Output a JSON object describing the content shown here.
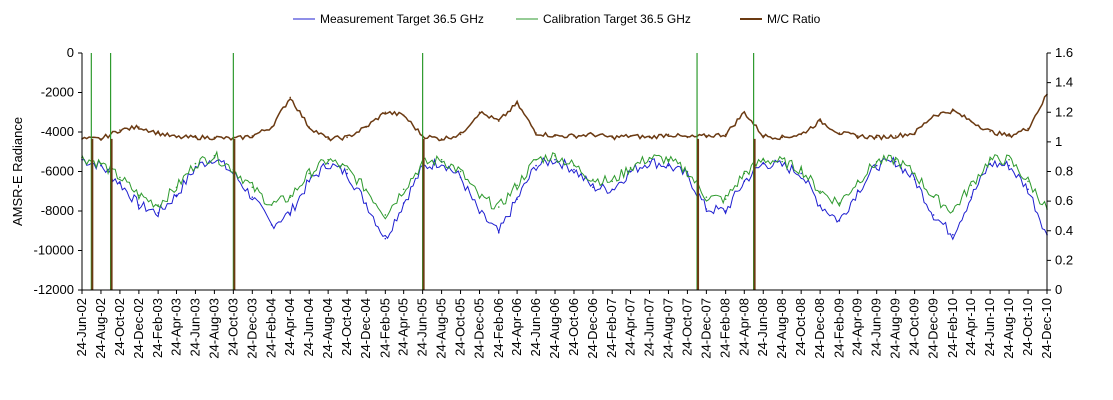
{
  "chart_data": {
    "type": "line",
    "ylabel": "AMSR-E Radiance",
    "y_left_range": [
      -12000,
      0
    ],
    "y_left_ticks": [
      "0",
      "-2000",
      "-4000",
      "-6000",
      "-8000",
      "-10000",
      "-12000"
    ],
    "y_right_range": [
      0,
      1.6
    ],
    "y_right_ticks": [
      "1.6",
      "1.4",
      "1.2",
      "1",
      "0.8",
      "0.6",
      "0.4",
      "0.2",
      "0"
    ],
    "x_tick_labels": [
      "24-Jun-02",
      "24-Aug-02",
      "24-Oct-02",
      "24-Dec-02",
      "24-Feb-03",
      "24-Apr-03",
      "24-Jun-03",
      "24-Aug-03",
      "24-Oct-03",
      "24-Dec-03",
      "24-Feb-04",
      "24-Apr-04",
      "24-Jun-04",
      "24-Aug-04",
      "24-Oct-04",
      "24-Dec-04",
      "24-Feb-05",
      "24-Apr-05",
      "24-Jun-05",
      "24-Aug-05",
      "24-Oct-05",
      "24-Dec-05",
      "24-Feb-06",
      "24-Apr-06",
      "24-Jun-06",
      "24-Aug-06",
      "24-Oct-06",
      "24-Dec-06",
      "24-Feb-07",
      "24-Apr-07",
      "24-Jun-07",
      "24-Aug-07",
      "24-Oct-07",
      "24-Dec-07",
      "24-Feb-08",
      "24-Apr-08",
      "24-Jun-08",
      "24-Aug-08",
      "24-Oct-08",
      "24-Dec-08",
      "24-Feb-09",
      "24-Apr-09",
      "24-Jun-09",
      "24-Aug-09",
      "24-Oct-09",
      "24-Dec-09",
      "24-Feb-10",
      "24-Apr-10",
      "24-Jun-10",
      "24-Aug-10",
      "24-Oct-10",
      "24-Dec-10"
    ],
    "grid": false,
    "legend_position": "top",
    "series": [
      {
        "name": "Measurement Target 36.5 GHz",
        "axis": "left",
        "color": "#1f1fd0",
        "x": [
          "24-Jun-02",
          "24-Aug-02",
          "24-Oct-02",
          "24-Dec-02",
          "24-Feb-03",
          "24-Apr-03",
          "24-Jun-03",
          "24-Aug-03",
          "24-Oct-03",
          "24-Dec-03",
          "24-Feb-04",
          "24-Apr-04",
          "24-Jun-04",
          "24-Aug-04",
          "24-Oct-04",
          "24-Dec-04",
          "24-Feb-05",
          "24-Apr-05",
          "24-Jun-05",
          "24-Aug-05",
          "24-Oct-05",
          "24-Dec-05",
          "24-Feb-06",
          "24-Apr-06",
          "24-Jun-06",
          "24-Aug-06",
          "24-Oct-06",
          "24-Dec-06",
          "24-Feb-07",
          "24-Apr-07",
          "24-Jun-07",
          "24-Aug-07",
          "24-Oct-07",
          "24-Dec-07",
          "24-Feb-08",
          "24-Apr-08",
          "24-Jun-08",
          "24-Aug-08",
          "24-Oct-08",
          "24-Dec-08",
          "24-Feb-09",
          "24-Apr-09",
          "24-Jun-09",
          "24-Aug-09",
          "24-Oct-09",
          "24-Dec-09",
          "24-Feb-10",
          "24-Apr-10",
          "24-Jun-10",
          "24-Aug-10",
          "24-Oct-10",
          "24-Dec-10"
        ],
        "values": [
          -5400,
          -5700,
          -6600,
          -7700,
          -8100,
          -7200,
          -5800,
          -5300,
          -6100,
          -7300,
          -8700,
          -8100,
          -6500,
          -5600,
          -6100,
          -7600,
          -9400,
          -7600,
          -5800,
          -5500,
          -6300,
          -8100,
          -9100,
          -7400,
          -5700,
          -5400,
          -5900,
          -6800,
          -6900,
          -6000,
          -5500,
          -5700,
          -6200,
          -7900,
          -8000,
          -6500,
          -5600,
          -5700,
          -6100,
          -7700,
          -8500,
          -7000,
          -5700,
          -5500,
          -6400,
          -8200,
          -9200,
          -7300,
          -5600,
          -5700,
          -6900,
          -9200
        ]
      },
      {
        "name": "Calibration Target 36.5 GHz",
        "axis": "left",
        "color": "#2e9a2e",
        "x": [
          "24-Jun-02",
          "24-Aug-02",
          "24-Oct-02",
          "24-Dec-02",
          "24-Feb-03",
          "24-Apr-03",
          "24-Jun-03",
          "24-Aug-03",
          "24-Oct-03",
          "24-Dec-03",
          "24-Feb-04",
          "24-Apr-04",
          "24-Jun-04",
          "24-Aug-04",
          "24-Oct-04",
          "24-Dec-04",
          "24-Feb-05",
          "24-Apr-05",
          "24-Jun-05",
          "24-Aug-05",
          "24-Oct-05",
          "24-Dec-05",
          "24-Feb-06",
          "24-Apr-06",
          "24-Jun-06",
          "24-Aug-06",
          "24-Oct-06",
          "24-Dec-06",
          "24-Feb-07",
          "24-Apr-07",
          "24-Jun-07",
          "24-Aug-07",
          "24-Oct-07",
          "24-Dec-07",
          "24-Feb-08",
          "24-Apr-08",
          "24-Jun-08",
          "24-Aug-08",
          "24-Oct-08",
          "24-Dec-08",
          "24-Feb-09",
          "24-Apr-09",
          "24-Jun-09",
          "24-Aug-09",
          "24-Oct-09",
          "24-Dec-09",
          "24-Feb-10",
          "24-Apr-10",
          "24-Jun-10",
          "24-Aug-10",
          "24-Oct-10",
          "24-Dec-10"
        ],
        "values": [
          -5300,
          -5600,
          -6300,
          -7200,
          -7700,
          -6800,
          -5600,
          -5200,
          -5900,
          -6800,
          -7700,
          -7300,
          -6100,
          -5400,
          -5900,
          -6900,
          -8200,
          -6900,
          -5600,
          -5400,
          -6000,
          -7300,
          -7800,
          -6700,
          -5400,
          -5200,
          -5700,
          -6400,
          -6500,
          -5800,
          -5300,
          -5400,
          -6000,
          -7300,
          -7400,
          -6100,
          -5400,
          -5500,
          -5900,
          -7000,
          -7600,
          -6500,
          -5500,
          -5400,
          -6100,
          -7300,
          -8000,
          -6700,
          -5400,
          -5400,
          -6500,
          -7900
        ]
      },
      {
        "name": "M/C Ratio",
        "axis": "right",
        "color": "#6b3a12",
        "x": [
          "24-Jun-02",
          "24-Aug-02",
          "24-Oct-02",
          "24-Dec-02",
          "24-Feb-03",
          "24-Apr-03",
          "24-Jun-03",
          "24-Aug-03",
          "24-Oct-03",
          "24-Dec-03",
          "24-Feb-04",
          "24-Apr-04",
          "24-Jun-04",
          "24-Aug-04",
          "24-Oct-04",
          "24-Dec-04",
          "24-Feb-05",
          "24-Apr-05",
          "24-Jun-05",
          "24-Aug-05",
          "24-Oct-05",
          "24-Dec-05",
          "24-Feb-06",
          "24-Apr-06",
          "24-Jun-06",
          "24-Aug-06",
          "24-Oct-06",
          "24-Dec-06",
          "24-Feb-07",
          "24-Apr-07",
          "24-Jun-07",
          "24-Aug-07",
          "24-Oct-07",
          "24-Dec-07",
          "24-Feb-08",
          "24-Apr-08",
          "24-Jun-08",
          "24-Aug-08",
          "24-Oct-08",
          "24-Dec-08",
          "24-Feb-09",
          "24-Apr-09",
          "24-Jun-09",
          "24-Aug-09",
          "24-Oct-09",
          "24-Dec-09",
          "24-Feb-10",
          "24-Apr-10",
          "24-Jun-10",
          "24-Aug-10",
          "24-Oct-10",
          "24-Dec-10"
        ],
        "values": [
          1.02,
          1.02,
          1.08,
          1.1,
          1.06,
          1.03,
          1.03,
          1.03,
          1.02,
          1.04,
          1.1,
          1.3,
          1.1,
          1.02,
          1.03,
          1.1,
          1.2,
          1.18,
          1.04,
          1.02,
          1.05,
          1.2,
          1.14,
          1.26,
          1.06,
          1.04,
          1.04,
          1.05,
          1.03,
          1.04,
          1.03,
          1.05,
          1.03,
          1.04,
          1.05,
          1.2,
          1.04,
          1.03,
          1.05,
          1.14,
          1.06,
          1.04,
          1.03,
          1.04,
          1.06,
          1.18,
          1.21,
          1.14,
          1.07,
          1.04,
          1.09,
          1.32
        ]
      }
    ],
    "dropouts": [
      "24-Jul-02",
      "24-Sep-02",
      "24-Oct-03",
      "24-Jun-05",
      "24-Nov-07",
      "24-May-08"
    ]
  }
}
